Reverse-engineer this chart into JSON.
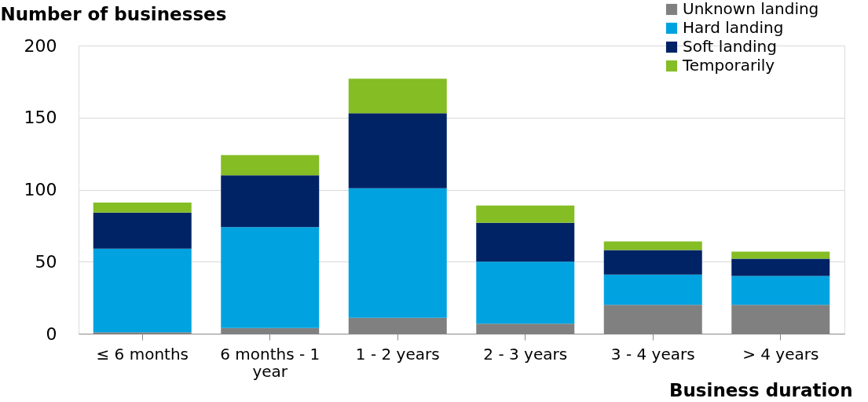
{
  "chart_data": {
    "type": "bar",
    "stacked": true,
    "xlabel": "Business duration",
    "ylabel": "Number of businesses",
    "categories": [
      "≤ 6 months",
      "6 months - 1 year",
      "1 - 2 years",
      "2 - 3 years",
      "3 - 4 years",
      "> 4 years"
    ],
    "series": [
      {
        "name": "Unknown landing",
        "color": "#808080",
        "values": [
          1,
          4,
          11,
          7,
          20,
          20
        ]
      },
      {
        "name": "Hard landing",
        "color": "#00a3e0",
        "values": [
          58,
          70,
          90,
          43,
          21,
          20
        ]
      },
      {
        "name": "Soft landing",
        "color": "#002366",
        "values": [
          25,
          36,
          52,
          27,
          17,
          12
        ]
      },
      {
        "name": "Temporarily",
        "color": "#84bd24",
        "values": [
          7,
          14,
          24,
          12,
          6,
          5
        ]
      }
    ],
    "ylim": [
      0,
      200
    ],
    "yticks": [
      0,
      50,
      100,
      150,
      200
    ],
    "grid": "y",
    "legend": "top right"
  }
}
